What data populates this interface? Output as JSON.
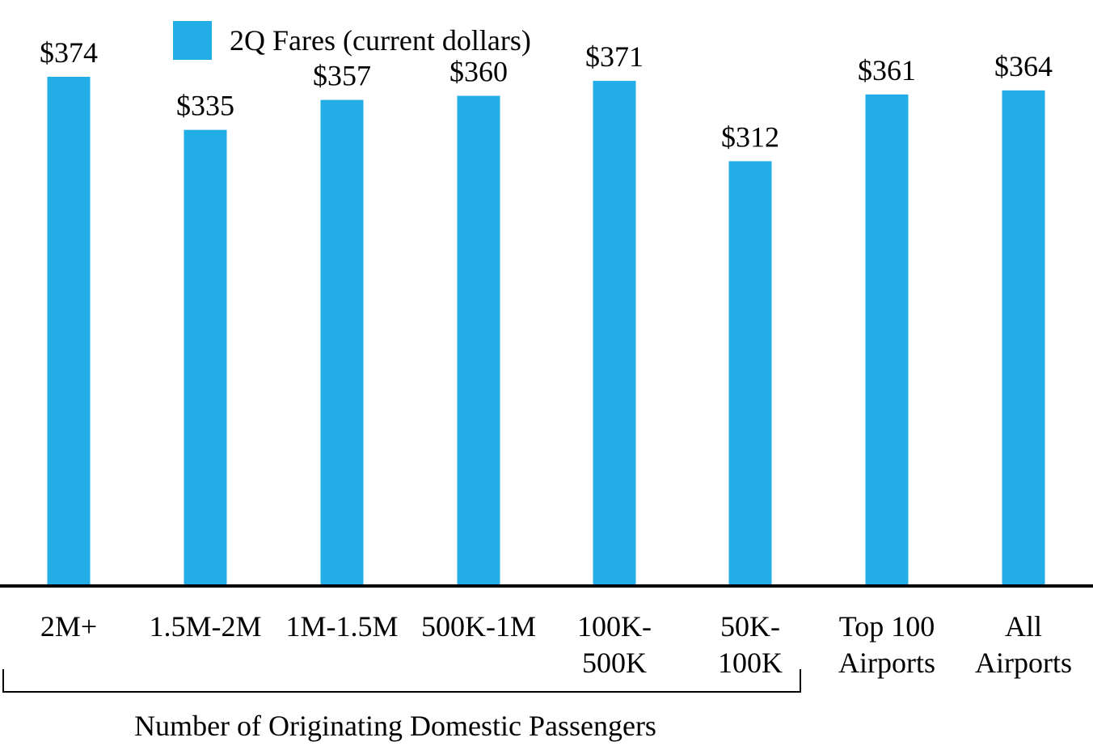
{
  "chart_data": {
    "type": "bar",
    "categories": [
      [
        "2M+"
      ],
      [
        "1.5M-2M"
      ],
      [
        "1M-1.5M"
      ],
      [
        "500K-1M"
      ],
      [
        "100K-",
        "500K"
      ],
      [
        "50K-",
        "100K"
      ],
      [
        "Top 100",
        "Airports"
      ],
      [
        "All",
        "Airports"
      ]
    ],
    "series": [
      {
        "name": "2Q Fares (current dollars)",
        "values": [
          374,
          335,
          357,
          360,
          371,
          312,
          361,
          364
        ],
        "color": "#22ade6"
      }
    ],
    "data_labels": [
      "$374",
      "$335",
      "$357",
      "$360",
      "$371",
      "$312",
      "$361",
      "$364"
    ],
    "ylim": [
      0,
      430
    ],
    "grid": false,
    "legend_position": "top-left",
    "group_bracket": {
      "label": "Number of Originating Domestic Passengers",
      "first_category": 0,
      "last_category": 5
    }
  }
}
